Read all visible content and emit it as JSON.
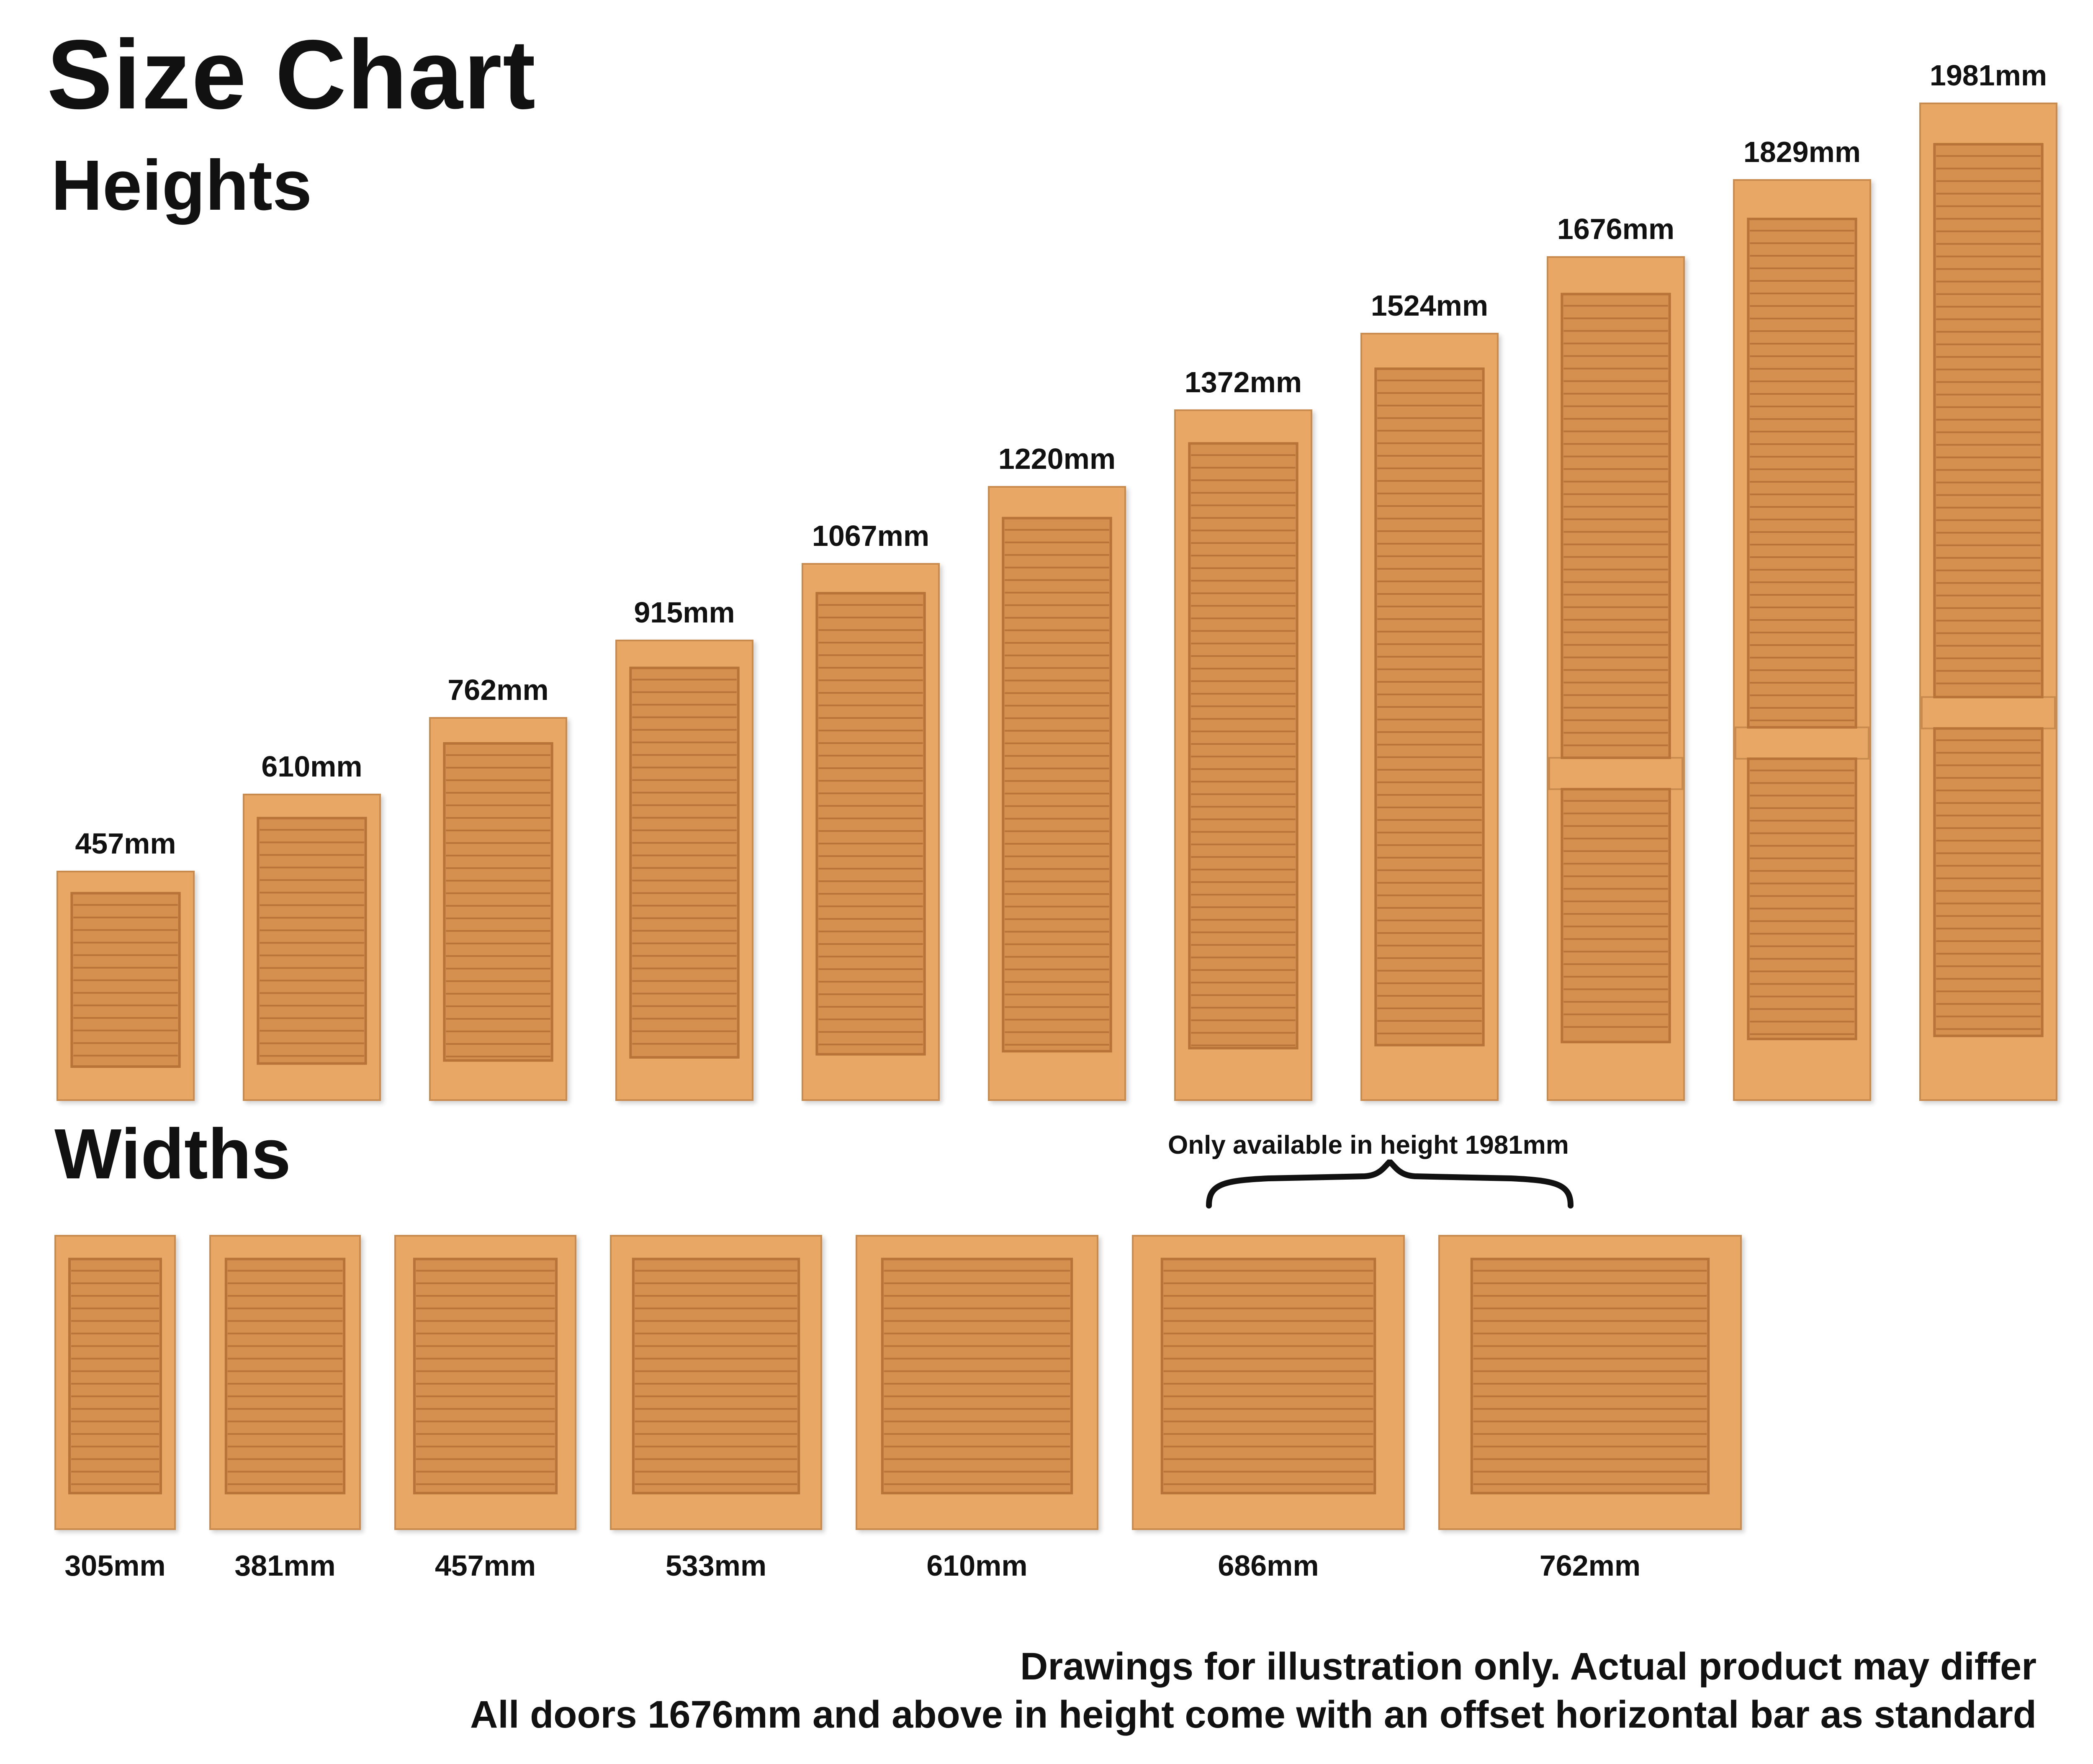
{
  "title": "Size Chart",
  "heights": {
    "heading": "Heights",
    "items": [
      {
        "label": "457mm",
        "value": 457
      },
      {
        "label": "610mm",
        "value": 610
      },
      {
        "label": "762mm",
        "value": 762
      },
      {
        "label": "915mm",
        "value": 915
      },
      {
        "label": "1067mm",
        "value": 1067
      },
      {
        "label": "1220mm",
        "value": 1220
      },
      {
        "label": "1372mm",
        "value": 1372
      },
      {
        "label": "1524mm",
        "value": 1524
      },
      {
        "label": "1676mm",
        "value": 1676
      },
      {
        "label": "1829mm",
        "value": 1829
      },
      {
        "label": "1981mm",
        "value": 1981
      }
    ]
  },
  "widths": {
    "heading": "Widths",
    "note": "Only available in height 1981mm",
    "items": [
      {
        "label": "305mm",
        "value": 305
      },
      {
        "label": "381mm",
        "value": 381
      },
      {
        "label": "457mm",
        "value": 457
      },
      {
        "label": "533mm",
        "value": 533
      },
      {
        "label": "610mm",
        "value": 610
      },
      {
        "label": "686mm",
        "value": 686
      },
      {
        "label": "762mm",
        "value": 762
      }
    ]
  },
  "footer": {
    "line1": "Drawings for illustration only. Actual product may differ",
    "line2": "All doors 1676mm and above in height come with an offset horizontal bar as standard"
  },
  "colors": {
    "wood": "#e9a766",
    "wood_edge": "#c98a4d",
    "slat": "#d58f4f",
    "slat_dark": "#b87438"
  }
}
